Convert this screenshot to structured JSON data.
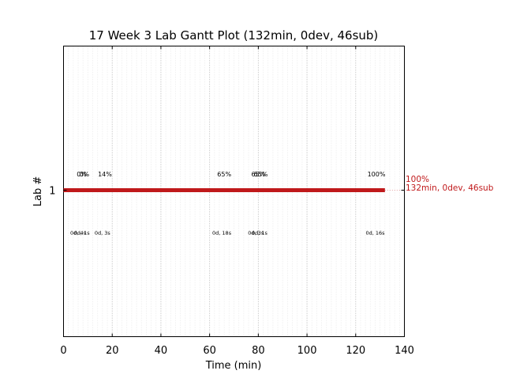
{
  "chart_data": {
    "type": "gantt",
    "title": "17 Week 3 Lab Gantt Plot (132min, 0dev, 46sub)",
    "xlabel": "Time (min)",
    "ylabel": "Lab #",
    "xlim": [
      0,
      140
    ],
    "x_ticks": [
      0,
      20,
      40,
      60,
      80,
      100,
      120,
      140
    ],
    "x_tick_labels": [
      "0",
      "20",
      "40",
      "60",
      "80",
      "100",
      "120",
      "140"
    ],
    "y_categories": [
      "1"
    ],
    "grid": "vertical-dotted",
    "bars": [
      {
        "lab": "1",
        "start": 0,
        "end": 132,
        "color": "#c0191b"
      }
    ],
    "bar_end_label": {
      "line1": "100%",
      "line2": "132min, 0dev, 46sub",
      "color": "#c0191b"
    },
    "percent_annotations": [
      {
        "x": 7.5,
        "text": "0%"
      },
      {
        "x": 8.5,
        "text": "0%"
      },
      {
        "x": 17,
        "text": "14%"
      },
      {
        "x": 66,
        "text": "65%"
      },
      {
        "x": 80,
        "text": "65%"
      },
      {
        "x": 81,
        "text": "65%"
      },
      {
        "x": 128.5,
        "text": "100%"
      }
    ],
    "duration_annotations": [
      {
        "x": 6,
        "text": "0d, 4s"
      },
      {
        "x": 7.5,
        "text": "0d, 1s"
      },
      {
        "x": 16,
        "text": "0d, 3s"
      },
      {
        "x": 65,
        "text": "0d, 18s"
      },
      {
        "x": 79,
        "text": "0d, 3s"
      },
      {
        "x": 80.5,
        "text": "0d, 1s"
      },
      {
        "x": 128,
        "text": "0d, 16s"
      }
    ]
  }
}
